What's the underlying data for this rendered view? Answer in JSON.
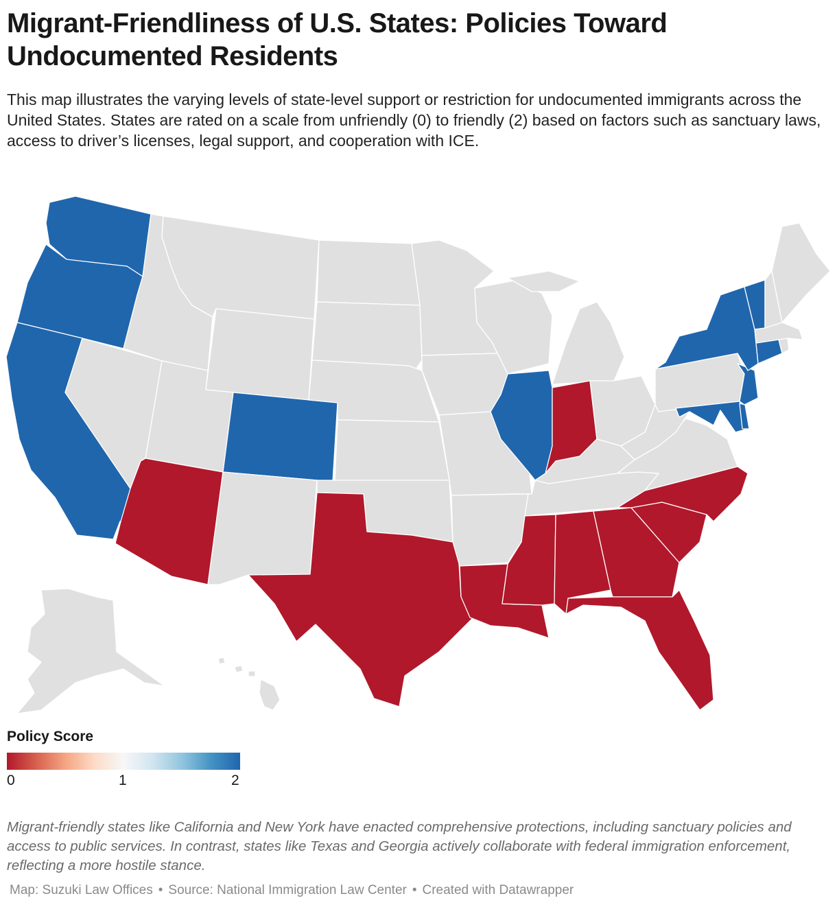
{
  "title": "Migrant-Friendliness of U.S. States: Policies Toward Undocumented Residents",
  "description": "This map illustrates the varying levels of state-level support or restriction for undocumented immigrants across the United States. States are rated on a scale from unfriendly (0) to friendly (2) based on factors such as sanctuary laws, access to driver’s licenses, legal support, and cooperation with ICE.",
  "colors": {
    "friendly": "#2066ad",
    "unfriendly": "#b1182b",
    "neutral": "#e0e0e0",
    "border": "#ffffff"
  },
  "legend": {
    "title": "Policy Score",
    "ticks": [
      "0",
      "1",
      "2"
    ],
    "gradient": [
      "#b1182b",
      "#d6604d",
      "#f4a582",
      "#fddbc7",
      "#f7f7f7",
      "#d1e5f0",
      "#92c5de",
      "#4393c3",
      "#2066ad"
    ]
  },
  "policy_scores": {
    "WA": 2,
    "OR": 2,
    "CA": 2,
    "CO": 2,
    "IL": 2,
    "NY": 2,
    "VT": 2,
    "CT": 2,
    "NJ": 2,
    "MD": 2,
    "DE": 2,
    "AZ": 0,
    "TX": 0,
    "IN": 0,
    "LA": 0,
    "MS": 0,
    "AL": 0,
    "GA": 0,
    "FL": 0,
    "SC": 0,
    "NC": 0
  },
  "note": "Migrant-friendly states like California and New York have enacted comprehensive protections, including sanctuary policies and access to public services. In contrast, states like Texas and Georgia actively collaborate with federal immigration enforcement, reflecting a more hostile stance.",
  "credits": [
    "Map: Suzuki Law Offices",
    "Source: National Immigration Law Center",
    "Created with Datawrapper"
  ],
  "credits_separator": "•"
}
